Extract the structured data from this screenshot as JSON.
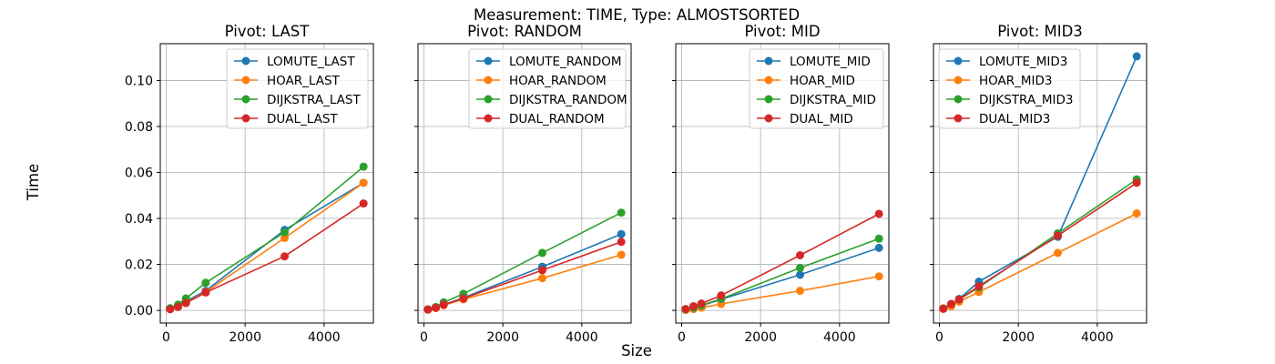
{
  "figure": {
    "suptitle": "Measurement: TIME, Type: ALMOSTSORTED",
    "xlabel": "Size",
    "ylabel": "Time"
  },
  "colors": {
    "LOMUTE": "#1f77b4",
    "HOAR": "#ff7f0e",
    "DIJKSTRA": "#2ca02c",
    "DUAL": "#d62728"
  },
  "chart_data": [
    {
      "type": "line",
      "title": "Pivot: LAST",
      "xlabel": "",
      "ylabel": "",
      "x": [
        100,
        300,
        500,
        1000,
        3000,
        5000
      ],
      "xlim": [
        -150,
        5250
      ],
      "ylim": [
        -0.0055,
        0.116
      ],
      "xticks": [
        0,
        2000,
        4000
      ],
      "yticks": [
        0.0,
        0.02,
        0.04,
        0.06,
        0.08,
        0.1
      ],
      "grid": true,
      "legend": "upper-right",
      "series": [
        {
          "name": "LOMUTE_LAST",
          "key": "LOMUTE",
          "values": [
            0.0008,
            0.002,
            0.004,
            0.0085,
            0.035,
            0.0555
          ]
        },
        {
          "name": "HOAR_LAST",
          "key": "HOAR",
          "values": [
            0.0006,
            0.0018,
            0.0035,
            0.008,
            0.0315,
            0.0555
          ]
        },
        {
          "name": "DIJKSTRA_LAST",
          "key": "DIJKSTRA",
          "values": [
            0.001,
            0.0025,
            0.0052,
            0.012,
            0.034,
            0.0625
          ]
        },
        {
          "name": "DUAL_LAST",
          "key": "DUAL",
          "values": [
            0.0005,
            0.0015,
            0.0032,
            0.0078,
            0.0235,
            0.0465
          ]
        }
      ]
    },
    {
      "type": "line",
      "title": "Pivot: RANDOM",
      "xlabel": "",
      "ylabel": "",
      "x": [
        100,
        300,
        500,
        1000,
        3000,
        5000
      ],
      "xlim": [
        -150,
        5250
      ],
      "ylim": [
        -0.0055,
        0.116
      ],
      "xticks": [
        0,
        2000,
        4000
      ],
      "yticks": [
        0.0,
        0.02,
        0.04,
        0.06,
        0.08,
        0.1
      ],
      "grid": true,
      "legend": "upper-right",
      "series": [
        {
          "name": "LOMUTE_RANDOM",
          "key": "LOMUTE",
          "values": [
            0.0004,
            0.0012,
            0.0025,
            0.0055,
            0.019,
            0.0332
          ]
        },
        {
          "name": "HOAR_RANDOM",
          "key": "HOAR",
          "values": [
            0.0003,
            0.001,
            0.0022,
            0.0048,
            0.014,
            0.0242
          ]
        },
        {
          "name": "DIJKSTRA_RANDOM",
          "key": "DIJKSTRA",
          "values": [
            0.0005,
            0.0015,
            0.0035,
            0.0072,
            0.025,
            0.0425
          ]
        },
        {
          "name": "DUAL_RANDOM",
          "key": "DUAL",
          "values": [
            0.0004,
            0.0012,
            0.0025,
            0.0052,
            0.0175,
            0.0298
          ]
        }
      ]
    },
    {
      "type": "line",
      "title": "Pivot: MID",
      "xlabel": "",
      "ylabel": "",
      "x": [
        100,
        300,
        500,
        1000,
        3000,
        5000
      ],
      "xlim": [
        -150,
        5250
      ],
      "ylim": [
        -0.0055,
        0.116
      ],
      "xticks": [
        0,
        2000,
        4000
      ],
      "yticks": [
        0.0,
        0.02,
        0.04,
        0.06,
        0.08,
        0.1
      ],
      "grid": true,
      "legend": "upper-right",
      "series": [
        {
          "name": "LOMUTE_MID",
          "key": "LOMUTE",
          "values": [
            0.0003,
            0.001,
            0.002,
            0.0048,
            0.0155,
            0.0272
          ]
        },
        {
          "name": "HOAR_MID",
          "key": "HOAR",
          "values": [
            0.0002,
            0.0006,
            0.0012,
            0.0028,
            0.0085,
            0.0148
          ]
        },
        {
          "name": "DIJKSTRA_MID",
          "key": "DIJKSTRA",
          "values": [
            0.0004,
            0.0012,
            0.0022,
            0.005,
            0.0185,
            0.0312
          ]
        },
        {
          "name": "DUAL_MID",
          "key": "DUAL",
          "values": [
            0.0006,
            0.0018,
            0.003,
            0.0065,
            0.024,
            0.042
          ]
        }
      ]
    },
    {
      "type": "line",
      "title": "Pivot: MID3",
      "xlabel": "",
      "ylabel": "",
      "x": [
        100,
        300,
        500,
        1000,
        3000,
        5000
      ],
      "xlim": [
        -150,
        5250
      ],
      "ylim": [
        -0.0055,
        0.116
      ],
      "xticks": [
        0,
        2000,
        4000
      ],
      "yticks": [
        0.0,
        0.02,
        0.04,
        0.06,
        0.08,
        0.1
      ],
      "grid": true,
      "legend": "upper-left",
      "series": [
        {
          "name": "LOMUTE_MID3",
          "key": "LOMUTE",
          "values": [
            0.0008,
            0.0025,
            0.005,
            0.0125,
            0.032,
            0.1105
          ]
        },
        {
          "name": "HOAR_MID3",
          "key": "HOAR",
          "values": [
            0.0006,
            0.0018,
            0.0038,
            0.008,
            0.025,
            0.0422
          ]
        },
        {
          "name": "DIJKSTRA_MID3",
          "key": "DIJKSTRA",
          "values": [
            0.0009,
            0.0028,
            0.0048,
            0.01,
            0.0335,
            0.057
          ]
        },
        {
          "name": "DUAL_MID3",
          "key": "DUAL",
          "values": [
            0.0008,
            0.0028,
            0.0048,
            0.0105,
            0.0325,
            0.0555
          ]
        }
      ]
    }
  ]
}
